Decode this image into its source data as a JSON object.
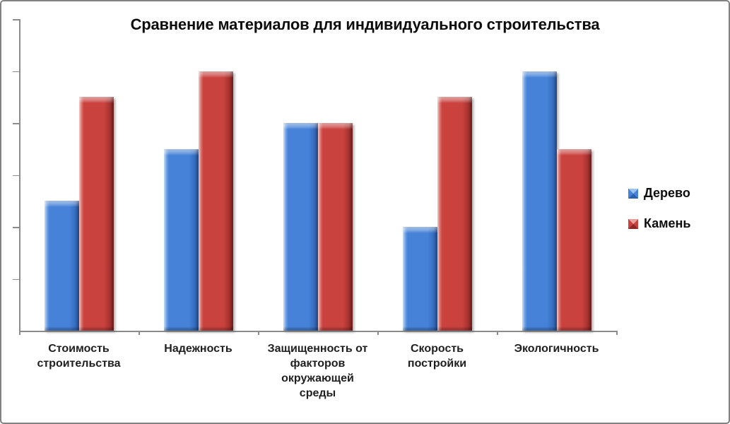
{
  "frame": {
    "background": "#FFFFFF",
    "border_color": "#828282"
  },
  "chart_data": {
    "type": "bar",
    "title": "Сравнение материалов для индивидуального строительства",
    "categories": [
      "Стоимость строительства",
      "Надежность",
      "Защищенность от факторов окружающей среды",
      "Скорость постройки",
      "Экологичность"
    ],
    "category_label_lines": [
      [
        "Стоимость",
        "строительства"
      ],
      [
        "Надежность"
      ],
      [
        "Защищенность от",
        "факторов",
        "окружающей",
        "среды"
      ],
      [
        "Скорость",
        "постройки"
      ],
      [
        "Экологичность"
      ]
    ],
    "series": [
      {
        "name": "Дерево",
        "values": [
          5,
          7,
          8,
          4,
          10
        ],
        "color": "#4582D8",
        "color_light": "#9CC4F2",
        "color_dark": "#2C5FAE"
      },
      {
        "name": "Камень",
        "values": [
          9,
          10,
          8,
          9,
          7
        ],
        "color": "#CA423E",
        "color_light": "#E9A19D",
        "color_dark": "#8E2826"
      }
    ],
    "xlabel": "",
    "ylabel": "",
    "ylim": [
      0,
      12
    ],
    "ytick_interval": 2,
    "ytick_labels_visible": false,
    "gridlines": false,
    "legend_position": "right",
    "axis_color": "#8C8C8C"
  }
}
